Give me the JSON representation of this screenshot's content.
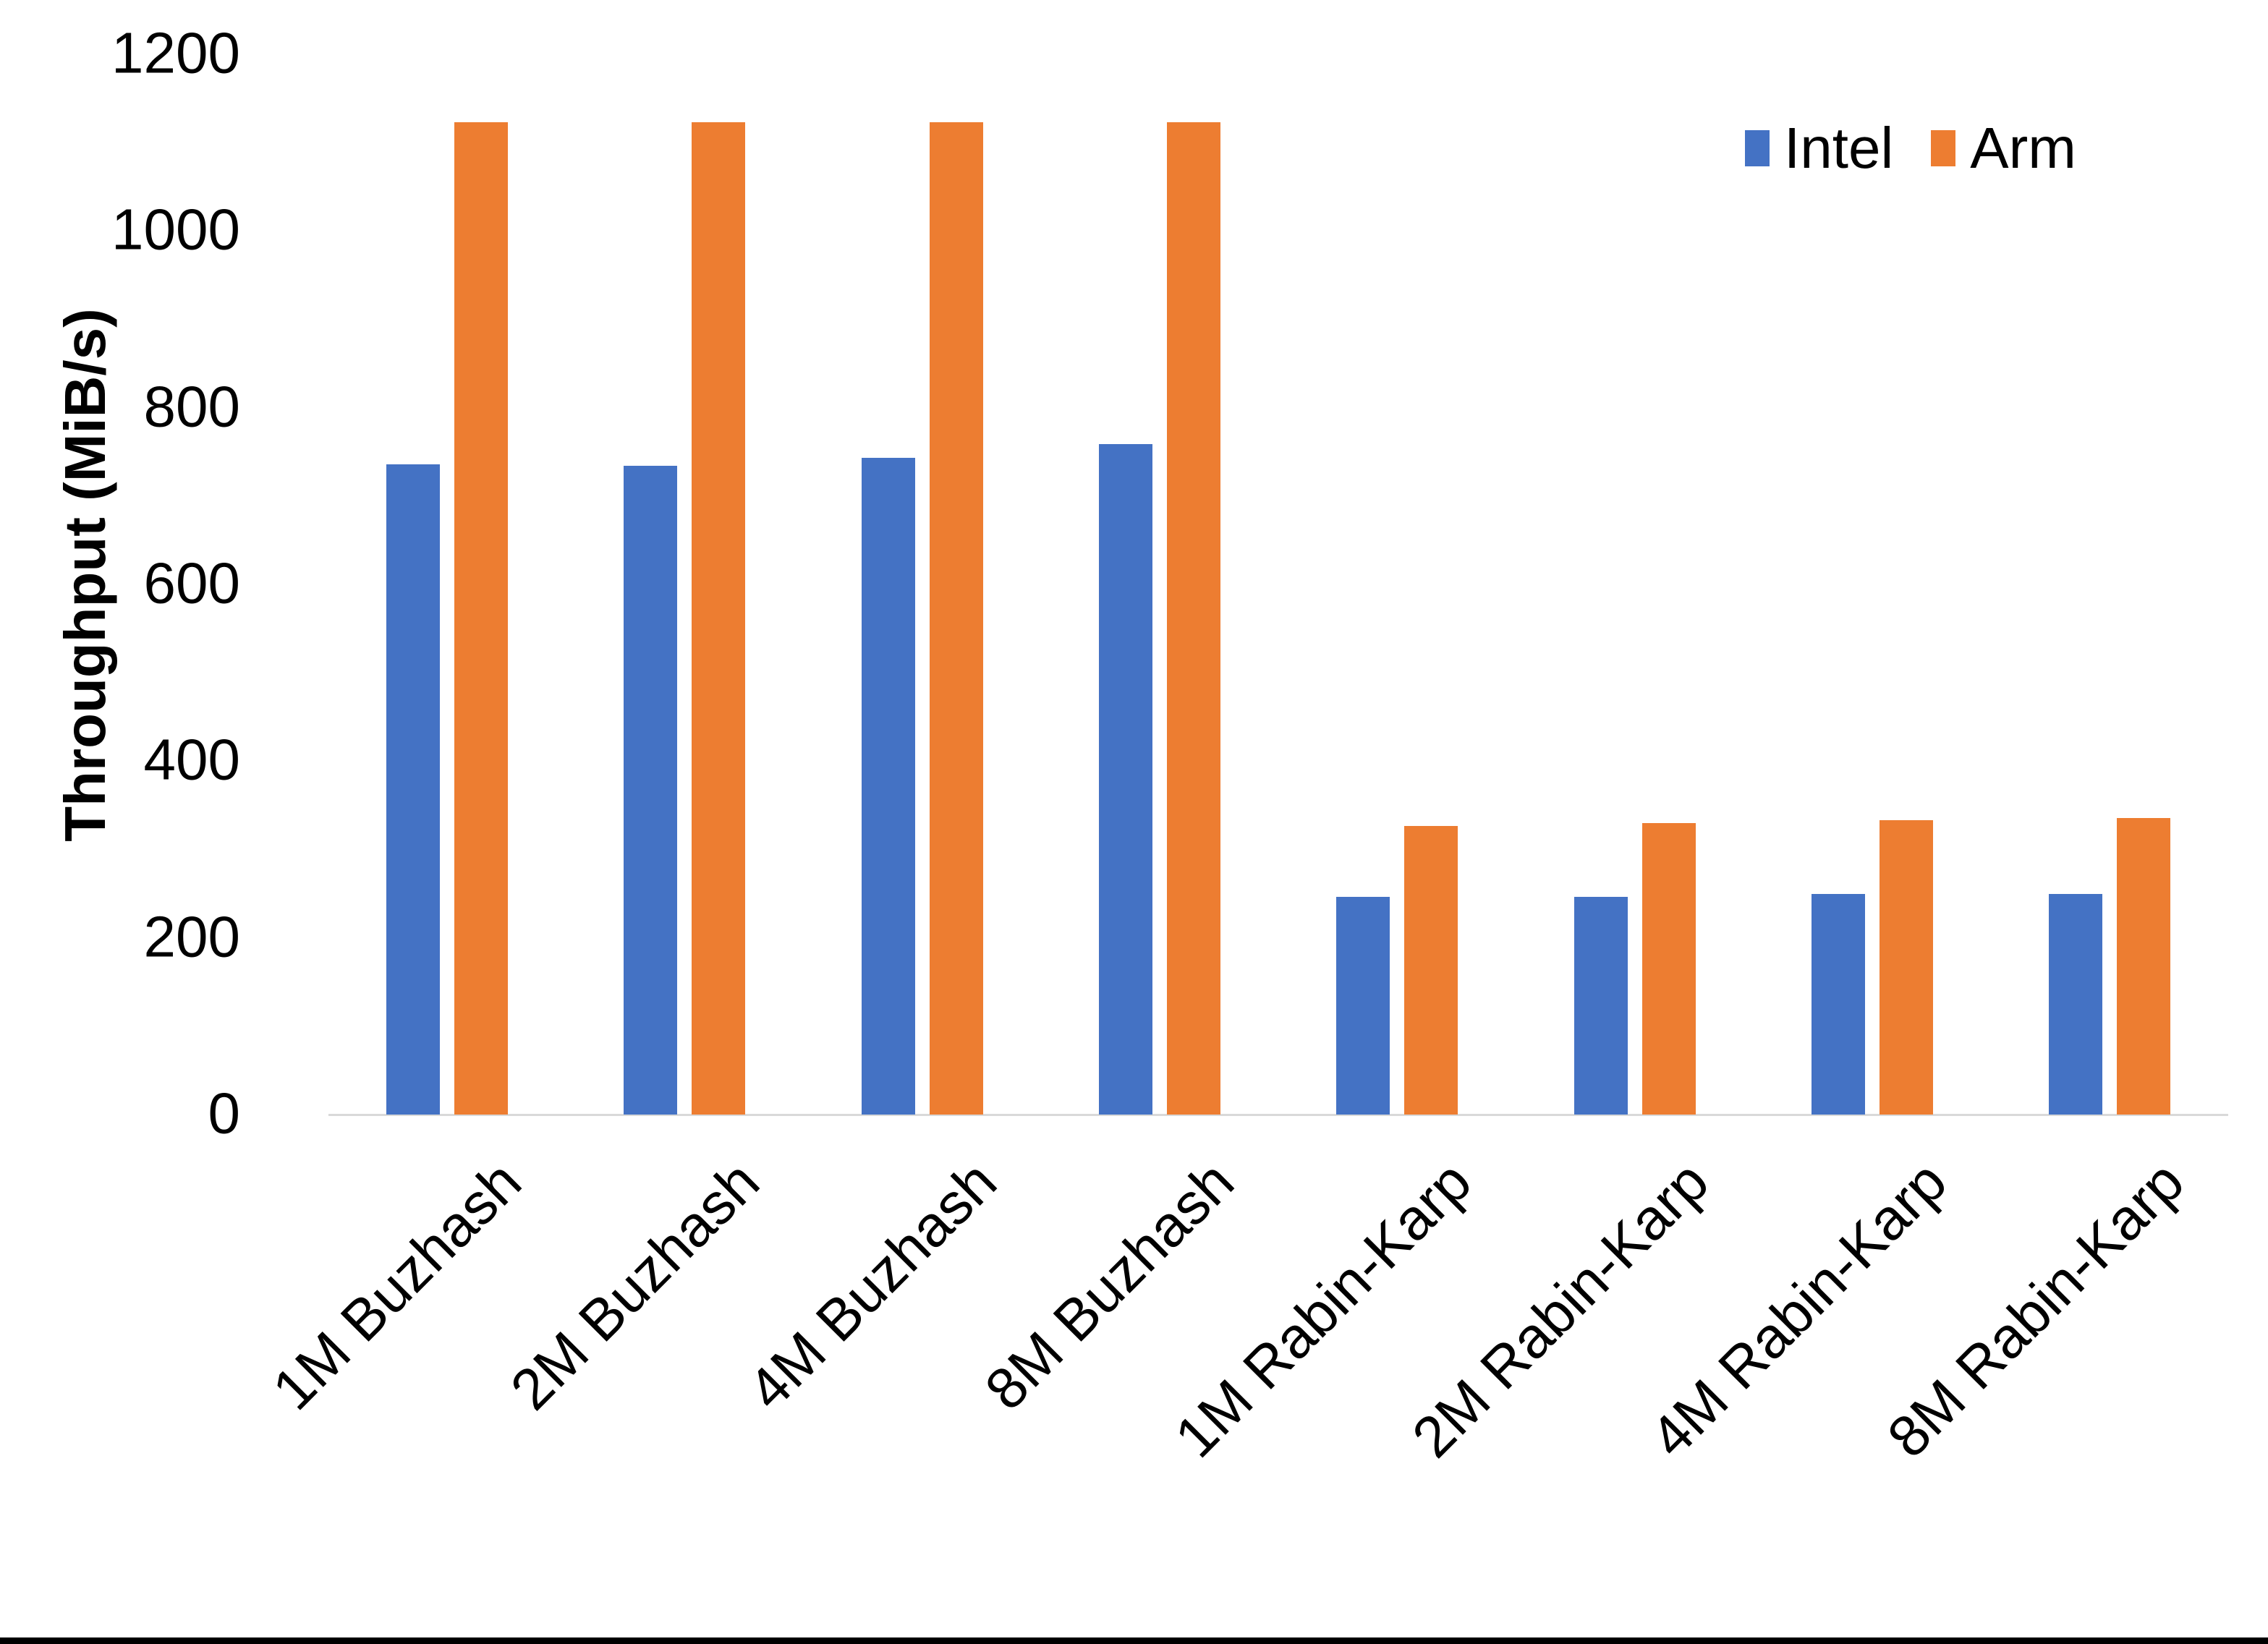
{
  "chart_data": {
    "type": "bar",
    "title": "",
    "xlabel": "",
    "ylabel": "Throughput (MiB/s)",
    "ylim": [
      0,
      1200
    ],
    "yticks": [
      0,
      200,
      400,
      600,
      800,
      1000,
      1200
    ],
    "grid": false,
    "legend_position": "top-right",
    "categories": [
      "1M Buzhash",
      "2M Buzhash",
      "4M Buzhash",
      "8M Buzhash",
      "1M Rabin-Karp",
      "2M Rabin-Karp",
      "4M Rabin-Karp",
      "8M Rabin-Karp"
    ],
    "series": [
      {
        "name": "Intel",
        "color": "#4472C4",
        "values": [
          736,
          734,
          743,
          759,
          246,
          246,
          250,
          250
        ]
      },
      {
        "name": "Arm",
        "color": "#ED7D31",
        "values": [
          1123,
          1123,
          1123,
          1123,
          327,
          330,
          333,
          336
        ]
      }
    ]
  },
  "colors": {
    "background": "#FFFFFF",
    "axis_line": "#D9D9D9",
    "text": "#000000",
    "bottom_border": "#000000"
  }
}
